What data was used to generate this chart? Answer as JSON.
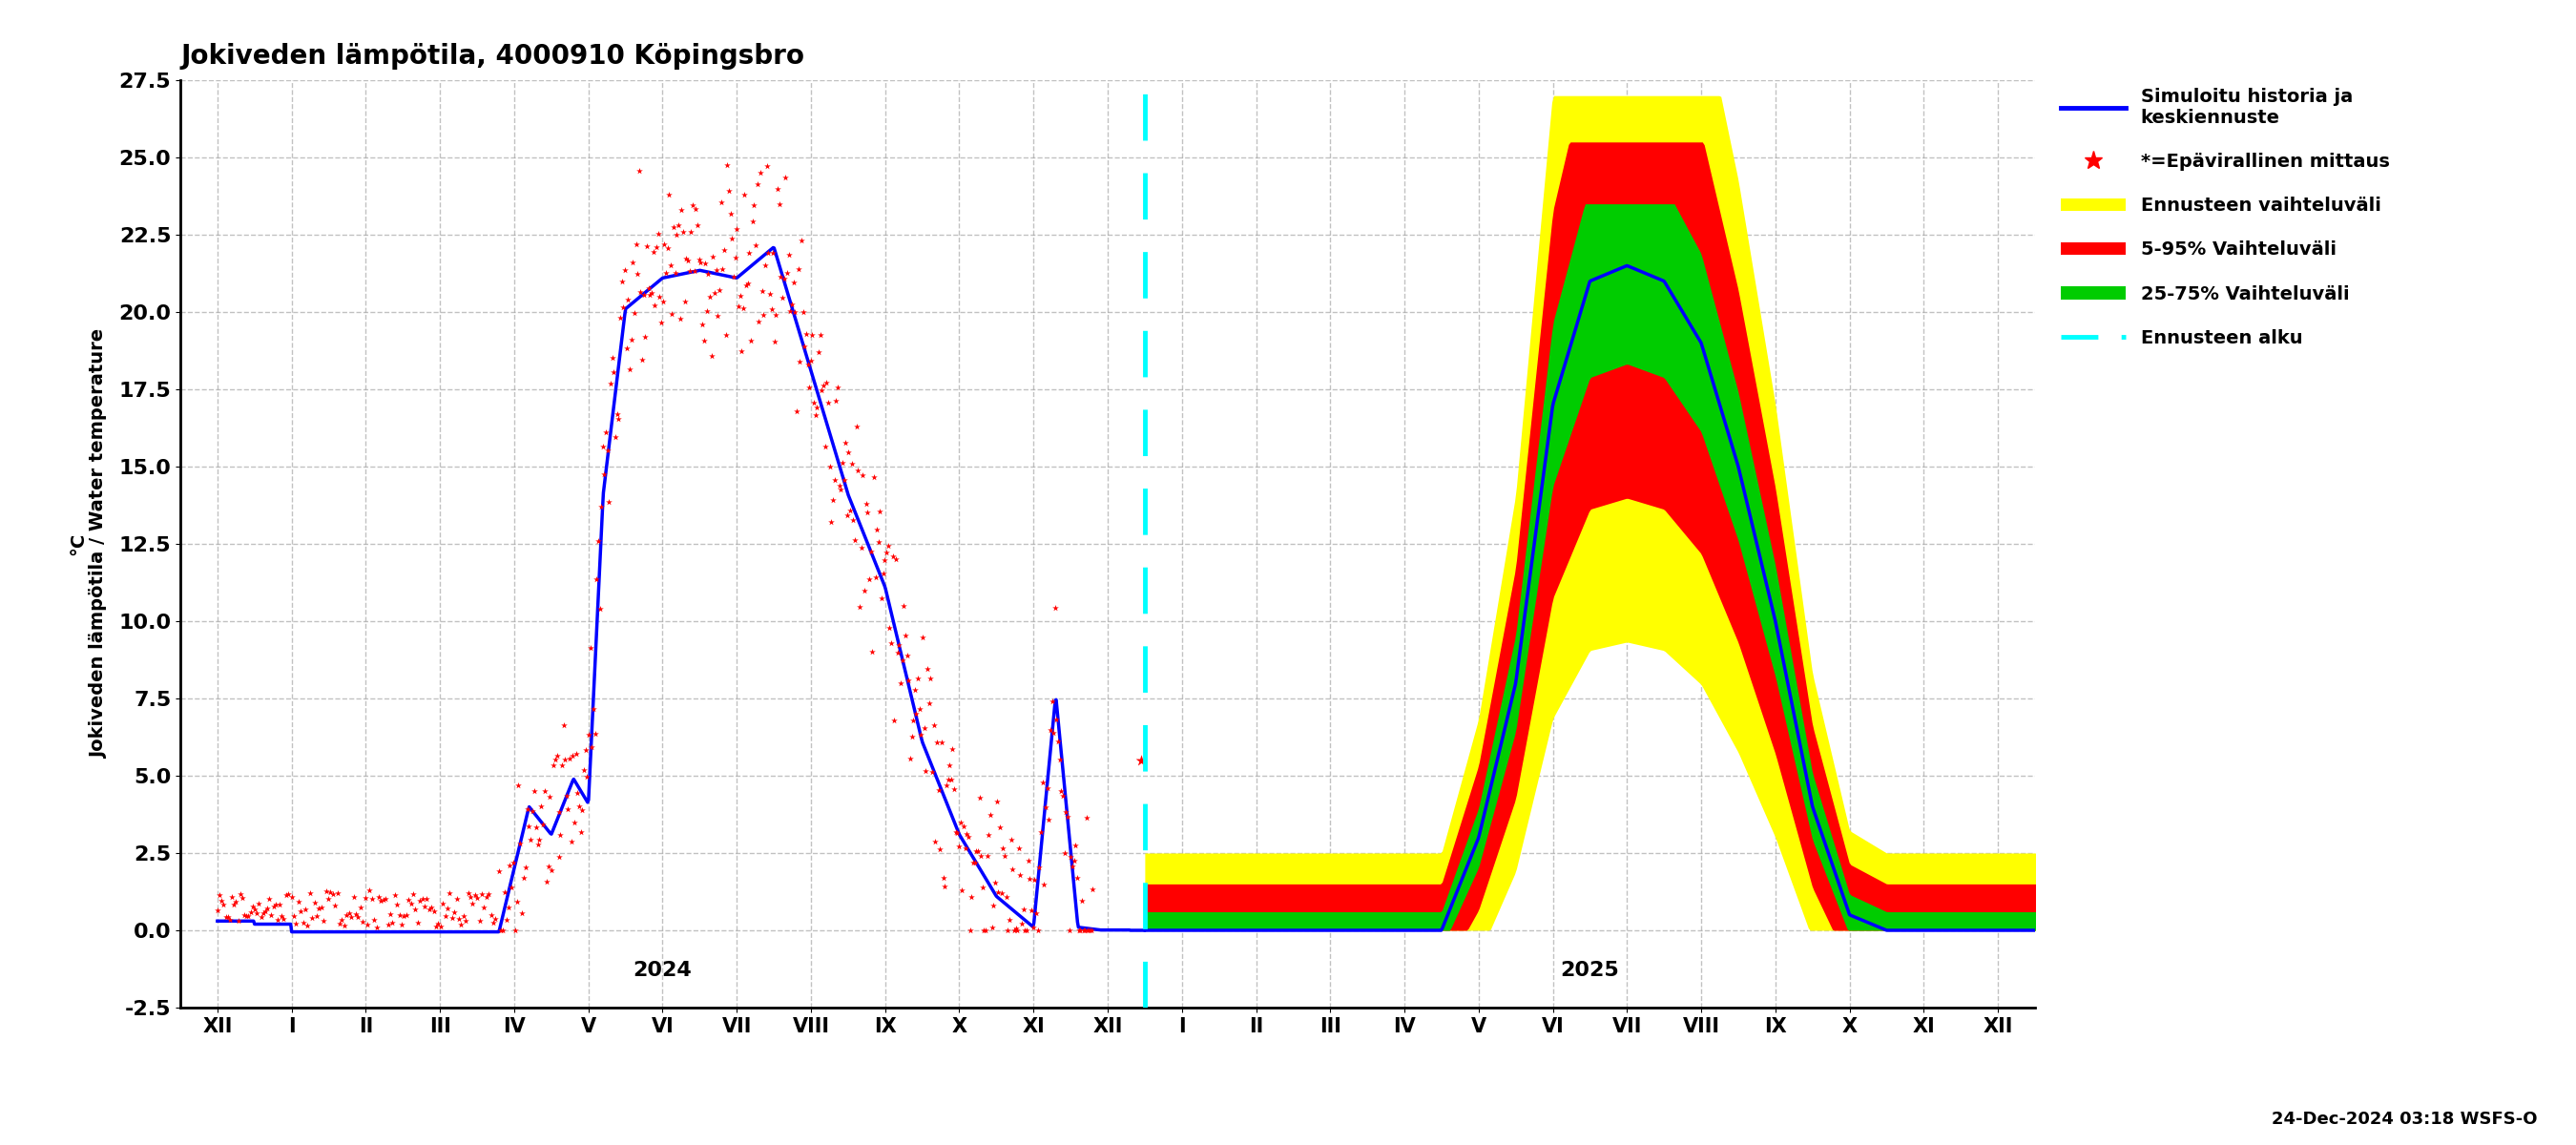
{
  "title": "Jokiveden lämpötila, 4000910 Köpingsbro",
  "ylabel_fi": "Jokiveden lämpötila / Water temperature",
  "ylabel_unit": "°C",
  "xlabel_date": "24-Dec-2024 03:18 WSFS-O",
  "ylim": [
    -2.5,
    27.5
  ],
  "yticks": [
    -2.5,
    0.0,
    2.5,
    5.0,
    7.5,
    10.0,
    12.5,
    15.0,
    17.5,
    20.0,
    22.5,
    25.0,
    27.5
  ],
  "bg_color": "#ffffff",
  "grid_color": "#999999",
  "forecast_vline_x": 12.5,
  "xlim": [
    -0.5,
    24.5
  ],
  "month_labels": [
    "XII",
    "I",
    "II",
    "III",
    "IV",
    "V",
    "VI",
    "VII",
    "VIII",
    "IX",
    "X",
    "XI",
    "XII",
    "I",
    "II",
    "III",
    "IV",
    "V",
    "VI",
    "VII",
    "VIII",
    "IX",
    "X",
    "XI",
    "XII"
  ],
  "year_2024_label": "2024",
  "year_2025_label": "2025",
  "year_2024_x": 6.0,
  "year_2025_x": 18.5
}
